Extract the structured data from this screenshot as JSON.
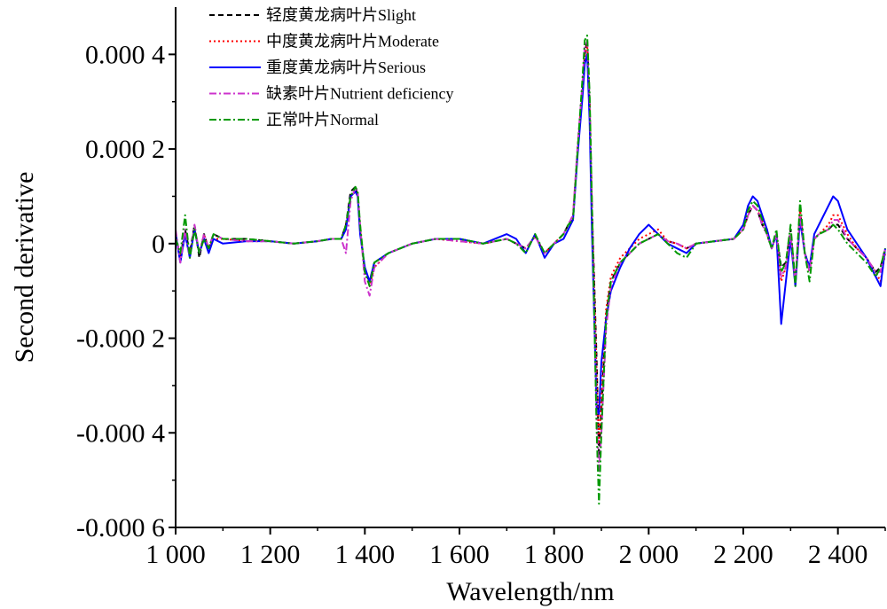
{
  "chart_data": {
    "type": "line",
    "xlabel": "Wavelength/nm",
    "ylabel": "Second derivative",
    "xlim": [
      1000,
      2500
    ],
    "ylim": [
      -0.0006,
      0.0005
    ],
    "x_ticks": [
      1000,
      1200,
      1400,
      1600,
      1800,
      2000,
      2200,
      2400
    ],
    "x_tick_labels": [
      "1 000",
      "1 200",
      "1 400",
      "1 600",
      "1 800",
      "2 000",
      "2 200",
      "2 400"
    ],
    "y_ticks": [
      0.0004,
      0.0002,
      0,
      -0.0002,
      -0.0004,
      -0.0006
    ],
    "y_tick_labels": [
      "0.000 4",
      "0.000 2",
      "0",
      "-0.000 2",
      "-0.000 4",
      "-0.000 6"
    ],
    "grid": false,
    "legend_position": "top-left",
    "series": [
      {
        "name": "轻度黄龙病叶片Slight",
        "color": "#000000",
        "style": "dashed",
        "x": [
          1000,
          1010,
          1020,
          1030,
          1040,
          1050,
          1060,
          1070,
          1080,
          1100,
          1150,
          1200,
          1250,
          1300,
          1330,
          1350,
          1360,
          1370,
          1380,
          1385,
          1390,
          1400,
          1410,
          1420,
          1450,
          1500,
          1550,
          1600,
          1650,
          1700,
          1720,
          1740,
          1760,
          1780,
          1800,
          1820,
          1830,
          1840,
          1850,
          1860,
          1865,
          1870,
          1875,
          1880,
          1890,
          1895,
          1900,
          1910,
          1920,
          1940,
          1960,
          1980,
          2000,
          2020,
          2040,
          2060,
          2080,
          2100,
          2140,
          2180,
          2200,
          2210,
          2220,
          2230,
          2240,
          2250,
          2260,
          2270,
          2280,
          2290,
          2300,
          2310,
          2320,
          2330,
          2340,
          2350,
          2360,
          2380,
          2390,
          2400,
          2420,
          2440,
          2460,
          2480,
          2490,
          2500
        ],
        "y": [
          2e-05,
          -3e-05,
          3e-05,
          -2e-05,
          4e-05,
          -3e-05,
          2e-05,
          -1e-05,
          2e-05,
          1e-05,
          1e-05,
          5e-06,
          0.0,
          5e-06,
          1e-05,
          1e-05,
          4e-05,
          0.00011,
          0.00012,
          0.0001,
          3e-05,
          -6e-05,
          -8e-05,
          -4e-05,
          -2e-05,
          0.0,
          1e-05,
          1e-05,
          0.0,
          1e-05,
          0.0,
          -1e-05,
          1.5e-05,
          -2e-05,
          0.0,
          2e-05,
          4e-05,
          5e-05,
          0.0002,
          0.00032,
          0.0004,
          0.00043,
          0.0003,
          8e-05,
          -0.00025,
          -0.00045,
          -0.00035,
          -0.00015,
          -8e-05,
          -4e-05,
          -2e-05,
          0.0,
          1e-05,
          2e-05,
          5e-06,
          0.0,
          -1e-05,
          0.0,
          5e-06,
          1e-05,
          3e-05,
          6e-05,
          8e-05,
          7e-05,
          4e-05,
          2e-05,
          -1e-05,
          2e-05,
          -5e-05,
          -4e-05,
          3e-05,
          -8e-05,
          7e-05,
          -2e-05,
          -5e-05,
          1e-05,
          2e-05,
          3e-05,
          4e-05,
          4e-05,
          1e-05,
          -1e-05,
          -3e-05,
          -6e-05,
          -5e-05,
          -1e-05
        ]
      },
      {
        "name": "中度黄龙病叶片Moderate",
        "color": "#ff0000",
        "style": "dotted",
        "x": [
          1000,
          1010,
          1020,
          1030,
          1040,
          1050,
          1060,
          1070,
          1080,
          1100,
          1150,
          1200,
          1250,
          1300,
          1330,
          1350,
          1360,
          1370,
          1380,
          1385,
          1390,
          1400,
          1410,
          1420,
          1450,
          1500,
          1550,
          1600,
          1650,
          1700,
          1720,
          1740,
          1760,
          1780,
          1800,
          1820,
          1830,
          1840,
          1850,
          1860,
          1865,
          1870,
          1875,
          1880,
          1890,
          1895,
          1900,
          1910,
          1920,
          1940,
          1960,
          1980,
          2000,
          2020,
          2040,
          2060,
          2080,
          2100,
          2140,
          2180,
          2200,
          2210,
          2220,
          2230,
          2240,
          2250,
          2260,
          2270,
          2280,
          2290,
          2300,
          2310,
          2320,
          2330,
          2340,
          2350,
          2360,
          2380,
          2390,
          2400,
          2420,
          2440,
          2460,
          2480,
          2490,
          2500
        ],
        "y": [
          1e-05,
          -3e-05,
          2e-05,
          -2e-05,
          3e-05,
          -2e-05,
          2e-05,
          -1e-05,
          1e-05,
          1e-05,
          5e-06,
          5e-06,
          0.0,
          5e-06,
          1e-05,
          1e-05,
          4e-05,
          0.0001,
          0.00011,
          0.0001,
          3e-05,
          -6e-05,
          -9e-05,
          -5e-05,
          -2e-05,
          0.0,
          1e-05,
          5e-06,
          0.0,
          1e-05,
          0.0,
          -1e-05,
          1.5e-05,
          -2e-05,
          0.0,
          2e-05,
          4e-05,
          6e-05,
          0.0002,
          0.00033,
          0.0004,
          0.00042,
          0.0003,
          8e-05,
          -0.00028,
          -0.00042,
          -0.00033,
          -0.00014,
          -7e-05,
          -3e-05,
          -1e-05,
          1e-05,
          2e-05,
          3e-05,
          5e-06,
          0.0,
          -1e-05,
          0.0,
          5e-06,
          1e-05,
          3e-05,
          6e-05,
          8e-05,
          7e-05,
          5e-05,
          3e-05,
          -1e-05,
          2e-05,
          -8e-05,
          -5e-05,
          2e-05,
          -9e-05,
          7e-05,
          -2e-05,
          -6e-05,
          1e-05,
          2e-05,
          4e-05,
          6e-05,
          6e-05,
          2e-05,
          -1e-05,
          -3e-05,
          -6e-05,
          -8e-05,
          -2e-05
        ]
      },
      {
        "name": "重度黄龙病叶片Serious",
        "color": "#0000ff",
        "style": "solid",
        "x": [
          1000,
          1010,
          1020,
          1030,
          1040,
          1050,
          1060,
          1070,
          1080,
          1100,
          1150,
          1200,
          1250,
          1300,
          1330,
          1350,
          1360,
          1370,
          1380,
          1385,
          1390,
          1400,
          1410,
          1420,
          1450,
          1500,
          1550,
          1600,
          1650,
          1700,
          1720,
          1740,
          1760,
          1780,
          1800,
          1820,
          1830,
          1840,
          1850,
          1860,
          1865,
          1870,
          1875,
          1880,
          1890,
          1895,
          1900,
          1910,
          1920,
          1940,
          1960,
          1980,
          2000,
          2020,
          2040,
          2060,
          2080,
          2100,
          2140,
          2180,
          2200,
          2210,
          2220,
          2230,
          2240,
          2250,
          2260,
          2270,
          2280,
          2290,
          2300,
          2310,
          2320,
          2330,
          2340,
          2350,
          2360,
          2380,
          2390,
          2400,
          2420,
          2440,
          2460,
          2480,
          2490,
          2500
        ],
        "y": [
          2e-05,
          -4e-05,
          2e-05,
          -3e-05,
          3e-05,
          -2e-05,
          1e-05,
          -2e-05,
          1e-05,
          0.0,
          5e-06,
          5e-06,
          0.0,
          5e-06,
          1e-05,
          1e-05,
          3e-05,
          0.0001,
          0.00011,
          0.0001,
          2e-05,
          -5e-05,
          -8e-05,
          -4e-05,
          -2e-05,
          0.0,
          1e-05,
          1e-05,
          0.0,
          2e-05,
          1e-05,
          -2e-05,
          2e-05,
          -3e-05,
          0.0,
          1e-05,
          3e-05,
          5e-05,
          0.00019,
          0.00031,
          0.00038,
          0.0004,
          0.00026,
          3e-05,
          -0.00035,
          -0.00036,
          -0.00025,
          -0.00016,
          -0.0001,
          -5e-05,
          -1e-05,
          2e-05,
          4e-05,
          2e-05,
          0.0,
          -1e-05,
          -2e-05,
          0.0,
          5e-06,
          1e-05,
          4e-05,
          8e-05,
          0.0001,
          9e-05,
          6e-05,
          3e-05,
          -1e-05,
          2e-05,
          -0.00017,
          -8e-05,
          1e-05,
          -9e-05,
          5e-05,
          -2e-05,
          -5e-05,
          2e-05,
          4e-05,
          8e-05,
          0.0001,
          9e-05,
          3e-05,
          0.0,
          -3e-05,
          -7e-05,
          -9e-05,
          -1e-05
        ]
      },
      {
        "name": "缺素叶片Nutrient deficiency",
        "color": "#cc33cc",
        "style": "dashdot",
        "x": [
          1000,
          1010,
          1020,
          1030,
          1040,
          1050,
          1060,
          1070,
          1080,
          1100,
          1150,
          1200,
          1250,
          1300,
          1330,
          1350,
          1360,
          1370,
          1380,
          1385,
          1390,
          1400,
          1410,
          1420,
          1450,
          1500,
          1550,
          1600,
          1650,
          1700,
          1720,
          1740,
          1760,
          1780,
          1800,
          1820,
          1830,
          1840,
          1850,
          1860,
          1865,
          1870,
          1875,
          1880,
          1890,
          1895,
          1900,
          1910,
          1920,
          1940,
          1960,
          1980,
          2000,
          2020,
          2040,
          2060,
          2080,
          2100,
          2140,
          2180,
          2200,
          2210,
          2220,
          2230,
          2240,
          2250,
          2260,
          2270,
          2280,
          2290,
          2300,
          2310,
          2320,
          2330,
          2340,
          2350,
          2360,
          2380,
          2390,
          2400,
          2420,
          2440,
          2460,
          2480,
          2490,
          2500
        ],
        "y": [
          3e-05,
          -4e-05,
          3e-05,
          -3e-05,
          4e-05,
          -2e-05,
          2e-05,
          -1e-05,
          2e-05,
          1e-05,
          5e-06,
          5e-06,
          0.0,
          5e-06,
          1e-05,
          1e-05,
          -2e-05,
          9e-05,
          0.00012,
          0.00011,
          4e-05,
          -8e-05,
          -0.00011,
          -5e-05,
          -2e-05,
          0.0,
          1e-05,
          5e-06,
          0.0,
          1e-05,
          0.0,
          -1e-05,
          1.5e-05,
          -2e-05,
          0.0,
          2e-05,
          4e-05,
          6e-05,
          0.00021,
          0.00034,
          0.00042,
          0.00043,
          0.0003,
          9e-05,
          -0.00038,
          -0.00048,
          -0.0004,
          -0.00018,
          -9e-05,
          -4e-05,
          -2e-05,
          0.0,
          1e-05,
          2e-05,
          5e-06,
          0.0,
          -1e-05,
          0.0,
          5e-06,
          1e-05,
          3e-05,
          6e-05,
          8e-05,
          7e-05,
          4e-05,
          2e-05,
          -1e-05,
          2e-05,
          -7e-05,
          -5e-05,
          2e-05,
          -8e-05,
          6e-05,
          -2e-05,
          -6e-05,
          1e-05,
          2e-05,
          3e-05,
          5e-05,
          5e-05,
          1e-05,
          -1e-05,
          -3e-05,
          -6e-05,
          -6e-05,
          -1e-05
        ]
      },
      {
        "name": "正常叶片Normal",
        "color": "#009900",
        "style": "dashdot",
        "x": [
          1000,
          1010,
          1020,
          1030,
          1040,
          1050,
          1060,
          1070,
          1080,
          1100,
          1150,
          1200,
          1250,
          1300,
          1330,
          1350,
          1360,
          1370,
          1380,
          1385,
          1390,
          1400,
          1410,
          1420,
          1450,
          1500,
          1550,
          1600,
          1650,
          1700,
          1720,
          1740,
          1760,
          1780,
          1800,
          1820,
          1830,
          1840,
          1850,
          1860,
          1865,
          1870,
          1875,
          1880,
          1890,
          1895,
          1900,
          1910,
          1920,
          1940,
          1960,
          1980,
          2000,
          2020,
          2040,
          2060,
          2080,
          2100,
          2140,
          2180,
          2200,
          2210,
          2220,
          2230,
          2240,
          2250,
          2260,
          2270,
          2280,
          2290,
          2300,
          2310,
          2320,
          2330,
          2340,
          2350,
          2360,
          2380,
          2390,
          2400,
          2420,
          2440,
          2460,
          2480,
          2490,
          2500
        ],
        "y": [
          1e-05,
          -2e-05,
          6e-05,
          -3e-05,
          3e-05,
          -2e-05,
          1e-05,
          -1e-05,
          2e-05,
          1e-05,
          1e-05,
          5e-06,
          0.0,
          5e-06,
          1e-05,
          1e-05,
          4e-05,
          0.0001,
          0.00012,
          0.00011,
          4e-05,
          -6e-05,
          -9e-05,
          -4e-05,
          -2e-05,
          0.0,
          1e-05,
          1e-05,
          0.0,
          1e-05,
          0.0,
          -2e-05,
          2e-05,
          -2e-05,
          0.0,
          2e-05,
          4e-05,
          5e-05,
          0.0002,
          0.00035,
          0.00043,
          0.00044,
          0.00032,
          9e-05,
          -0.0004,
          -0.00055,
          -0.0004,
          -0.00016,
          -8e-05,
          -4e-05,
          -2e-05,
          0.0,
          1e-05,
          2e-05,
          0.0,
          -2e-05,
          -3e-05,
          0.0,
          5e-06,
          1e-05,
          3e-05,
          7e-05,
          9e-05,
          8e-05,
          5e-05,
          2e-05,
          -1e-05,
          3e-05,
          -6e-05,
          -4e-05,
          4e-05,
          -9e-05,
          9e-05,
          -2e-05,
          -8e-05,
          1e-05,
          2e-05,
          3e-05,
          4e-05,
          3e-05,
          0.0,
          -2e-05,
          -4e-05,
          -7e-05,
          -5e-05,
          -1e-05
        ]
      }
    ]
  }
}
